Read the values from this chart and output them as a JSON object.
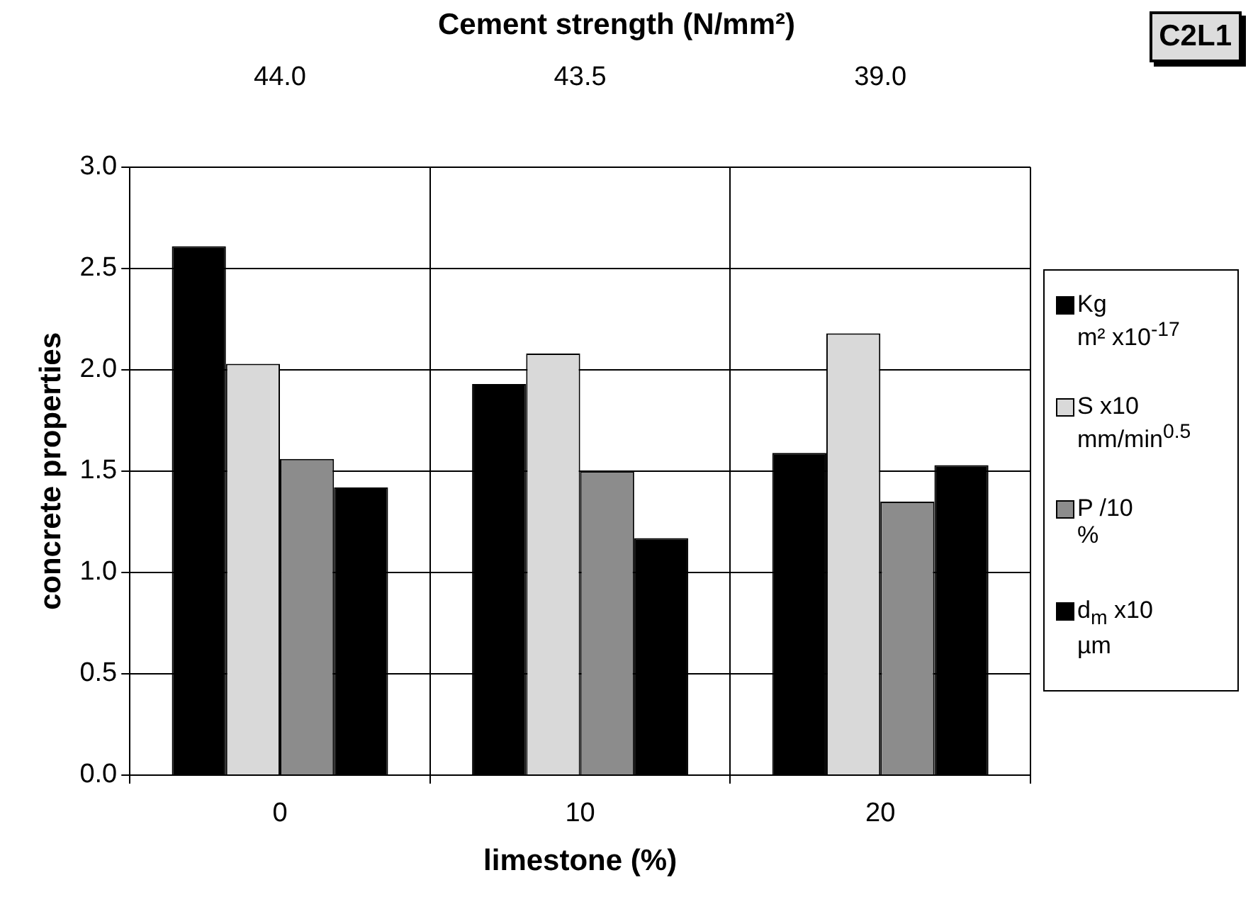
{
  "chart_data": {
    "type": "bar",
    "x2label": "Cement strength (N/mm²)",
    "xlabel": "limestone (%)",
    "ylabel": "concrete properties",
    "categories": [
      "0",
      "10",
      "20"
    ],
    "series": [
      {
        "name": "Kg\nm² x10$^{-17}$",
        "color": "#000000",
        "values": [
          2.61,
          1.93,
          1.59
        ]
      },
      {
        "name": "S x10\nmm/min$^{0.5}$",
        "color": "#d9d9d9",
        "values": [
          2.03,
          2.08,
          2.18
        ]
      },
      {
        "name": "P /10\n%",
        "color": "#8c8c8c",
        "values": [
          1.56,
          1.5,
          1.35
        ]
      },
      {
        "name": "d$_{m}$ x10\nµm",
        "color": "#000000",
        "values": [
          1.42,
          1.17,
          1.53
        ]
      }
    ],
    "ylim": [
      0,
      3
    ],
    "yticks": [
      {
        "value": 0,
        "label": "0.0"
      },
      {
        "value": 0.5,
        "label": "0.5"
      },
      {
        "value": 1,
        "label": "1.0"
      },
      {
        "value": 1.5,
        "label": "1.5"
      },
      {
        "value": 2,
        "label": "2.0"
      },
      {
        "value": 2.5,
        "label": "2.5"
      },
      {
        "value": 3,
        "label": "3.0"
      }
    ],
    "grid": true,
    "legend": "right",
    "annotations": [
      "44.0",
      "43.5",
      "39.0",
      "C2L1"
    ]
  }
}
